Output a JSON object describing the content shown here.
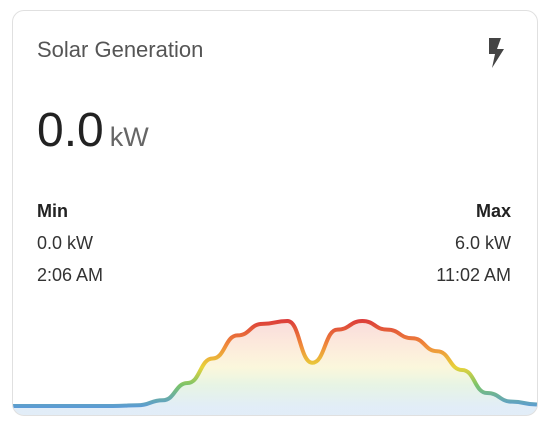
{
  "header": {
    "title": "Solar Generation"
  },
  "state": {
    "value": "0.0",
    "unit": "kW"
  },
  "min": {
    "label": "Min",
    "value": "0.0 kW",
    "time": "2:06 AM"
  },
  "max": {
    "label": "Max",
    "value": "6.0 kW",
    "time": "11:02 AM"
  },
  "graph": {
    "values": [
      0,
      0,
      0,
      0,
      0,
      0.05,
      0.4,
      1.6,
      3.3,
      4.9,
      5.7,
      5.9,
      3.0,
      5.3,
      5.9,
      5.3,
      4.7,
      3.8,
      2.5,
      0.9,
      0.3,
      0.1
    ]
  }
}
